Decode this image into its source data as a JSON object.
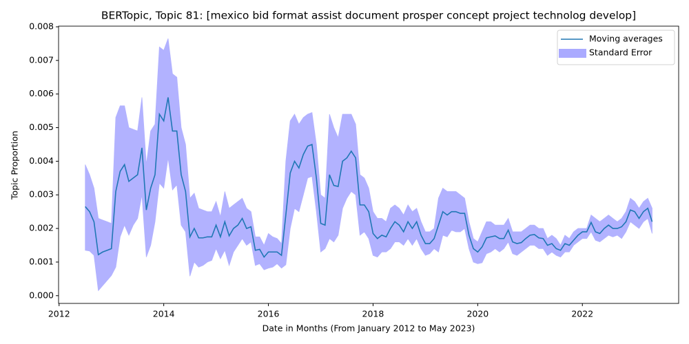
{
  "chart_data": {
    "type": "line",
    "title": "BERTopic, Topic 81: [mexico bid format assist document prosper concept project technolog develop]",
    "x_label": "Date in Months (From January 2012 to May 2023)",
    "y_label": "Topic Proportion",
    "x": [
      2012.5,
      2012.583,
      2012.667,
      2012.75,
      2012.833,
      2012.917,
      2013,
      2013.083,
      2013.167,
      2013.25,
      2013.333,
      2013.417,
      2013.5,
      2013.583,
      2013.667,
      2013.75,
      2013.833,
      2013.917,
      2014,
      2014.083,
      2014.167,
      2014.25,
      2014.333,
      2014.417,
      2014.5,
      2014.583,
      2014.667,
      2014.75,
      2014.833,
      2014.917,
      2015,
      2015.083,
      2015.167,
      2015.25,
      2015.333,
      2015.417,
      2015.5,
      2015.583,
      2015.667,
      2015.75,
      2015.833,
      2015.917,
      2016,
      2016.083,
      2016.167,
      2016.25,
      2016.333,
      2016.417,
      2016.5,
      2016.583,
      2016.667,
      2016.75,
      2016.833,
      2016.917,
      2017,
      2017.083,
      2017.167,
      2017.25,
      2017.333,
      2017.417,
      2017.5,
      2017.583,
      2017.667,
      2017.75,
      2017.833,
      2017.917,
      2018,
      2018.083,
      2018.167,
      2018.25,
      2018.333,
      2018.417,
      2018.5,
      2018.583,
      2018.667,
      2018.75,
      2018.833,
      2018.917,
      2019,
      2019.083,
      2019.167,
      2019.25,
      2019.333,
      2019.417,
      2019.5,
      2019.583,
      2019.667,
      2019.75,
      2019.833,
      2019.917,
      2020,
      2020.083,
      2020.167,
      2020.25,
      2020.333,
      2020.417,
      2020.5,
      2020.583,
      2020.667,
      2020.75,
      2020.833,
      2020.917,
      2021,
      2021.083,
      2021.167,
      2021.25,
      2021.333,
      2021.417,
      2021.5,
      2021.583,
      2021.667,
      2021.75,
      2021.833,
      2021.917,
      2022,
      2022.083,
      2022.167,
      2022.25,
      2022.333,
      2022.417,
      2022.5,
      2022.583,
      2022.667,
      2022.75,
      2022.833,
      2022.917,
      2023,
      2023.083,
      2023.167,
      2023.25,
      2023.333
    ],
    "series": [
      {
        "name": "Moving averages",
        "color": "#1f77b4",
        "values": [
          0.00265,
          0.0025,
          0.0022,
          0.00122,
          0.0013,
          0.00135,
          0.0014,
          0.0031,
          0.0037,
          0.0039,
          0.0034,
          0.0035,
          0.0036,
          0.0044,
          0.00255,
          0.0032,
          0.0036,
          0.0054,
          0.0052,
          0.0059,
          0.0049,
          0.0049,
          0.0036,
          0.0031,
          0.00175,
          0.002,
          0.00172,
          0.00172,
          0.00175,
          0.00175,
          0.0021,
          0.00175,
          0.0022,
          0.00178,
          0.002,
          0.0021,
          0.0023,
          0.002,
          0.00205,
          0.00135,
          0.00138,
          0.00115,
          0.0013,
          0.0013,
          0.0013,
          0.0012,
          0.0024,
          0.00365,
          0.004,
          0.0038,
          0.0042,
          0.00445,
          0.0045,
          0.0035,
          0.00215,
          0.0021,
          0.0036,
          0.00328,
          0.00325,
          0.004,
          0.0041,
          0.0043,
          0.0041,
          0.0027,
          0.0027,
          0.0025,
          0.00185,
          0.0017,
          0.0018,
          0.00175,
          0.002,
          0.0022,
          0.0021,
          0.0019,
          0.0022,
          0.002,
          0.0022,
          0.0018,
          0.00155,
          0.00155,
          0.0017,
          0.0021,
          0.0025,
          0.0024,
          0.0025,
          0.0025,
          0.00245,
          0.00245,
          0.0018,
          0.0014,
          0.0013,
          0.00145,
          0.00172,
          0.00175,
          0.00178,
          0.0017,
          0.0017,
          0.00195,
          0.0016,
          0.00155,
          0.00158,
          0.0017,
          0.0018,
          0.00182,
          0.00172,
          0.0017,
          0.0015,
          0.00155,
          0.0014,
          0.00135,
          0.00155,
          0.0015,
          0.00165,
          0.0018,
          0.0019,
          0.0019,
          0.00218,
          0.0019,
          0.00185,
          0.002,
          0.0021,
          0.002,
          0.002,
          0.00205,
          0.0022,
          0.00255,
          0.0025,
          0.0023,
          0.0025,
          0.0026,
          0.0022
        ]
      },
      {
        "name": "Standard Error",
        "color": "#aaaaff",
        "upper": [
          0.0039,
          0.0036,
          0.0032,
          0.0023,
          0.00225,
          0.0022,
          0.00215,
          0.0053,
          0.00565,
          0.00565,
          0.005,
          0.00495,
          0.0049,
          0.0059,
          0.0039,
          0.0049,
          0.0051,
          0.0074,
          0.0073,
          0.00765,
          0.0066,
          0.0065,
          0.005,
          0.0045,
          0.0029,
          0.00305,
          0.0026,
          0.00255,
          0.0025,
          0.0025,
          0.0028,
          0.00235,
          0.0031,
          0.0026,
          0.0027,
          0.0028,
          0.0029,
          0.0026,
          0.0025,
          0.00175,
          0.00175,
          0.0015,
          0.00185,
          0.00175,
          0.0017,
          0.00155,
          0.004,
          0.0052,
          0.0054,
          0.0051,
          0.0053,
          0.0054,
          0.00545,
          0.0045,
          0.003,
          0.0029,
          0.0054,
          0.005,
          0.0047,
          0.0054,
          0.0054,
          0.0054,
          0.0051,
          0.0036,
          0.0035,
          0.0032,
          0.0025,
          0.0023,
          0.0023,
          0.0022,
          0.0026,
          0.0027,
          0.0026,
          0.0024,
          0.0027,
          0.0025,
          0.0026,
          0.0022,
          0.0019,
          0.0019,
          0.002,
          0.0029,
          0.0032,
          0.0031,
          0.0031,
          0.0031,
          0.003,
          0.0029,
          0.0022,
          0.0017,
          0.0016,
          0.0019,
          0.0022,
          0.0022,
          0.0021,
          0.0021,
          0.0021,
          0.0023,
          0.0019,
          0.0019,
          0.0019,
          0.002,
          0.0021,
          0.0021,
          0.002,
          0.002,
          0.0017,
          0.0018,
          0.0017,
          0.0015,
          0.0018,
          0.0017,
          0.0019,
          0.002,
          0.002,
          0.002,
          0.0024,
          0.0023,
          0.0022,
          0.0023,
          0.0024,
          0.0023,
          0.0022,
          0.0023,
          0.0025,
          0.0029,
          0.0028,
          0.0026,
          0.0028,
          0.0029,
          0.0026
        ],
        "lower": [
          0.00135,
          0.00133,
          0.0012,
          0.00015,
          0.0003,
          0.00045,
          0.0006,
          0.00085,
          0.00175,
          0.0021,
          0.0018,
          0.0021,
          0.0023,
          0.003,
          0.00115,
          0.0015,
          0.0022,
          0.00335,
          0.0032,
          0.0041,
          0.00315,
          0.0033,
          0.0021,
          0.0019,
          0.00058,
          0.001,
          0.00085,
          0.0009,
          0.001,
          0.00105,
          0.0014,
          0.0011,
          0.00135,
          0.0009,
          0.0013,
          0.0015,
          0.0017,
          0.0015,
          0.0016,
          0.0009,
          0.00095,
          0.00077,
          0.00082,
          0.00085,
          0.00095,
          0.00082,
          0.00092,
          0.002,
          0.0026,
          0.0025,
          0.003,
          0.0035,
          0.00355,
          0.0025,
          0.0013,
          0.0014,
          0.0017,
          0.0016,
          0.0018,
          0.0026,
          0.0029,
          0.0031,
          0.003,
          0.0018,
          0.0019,
          0.0017,
          0.0012,
          0.00115,
          0.0013,
          0.0013,
          0.0014,
          0.0016,
          0.0016,
          0.0015,
          0.0017,
          0.0015,
          0.0017,
          0.0014,
          0.0012,
          0.00125,
          0.0014,
          0.0013,
          0.0018,
          0.00175,
          0.00195,
          0.0019,
          0.0019,
          0.002,
          0.0014,
          0.001,
          0.00095,
          0.00098,
          0.00125,
          0.0013,
          0.0014,
          0.0013,
          0.0014,
          0.0016,
          0.00125,
          0.0012,
          0.0013,
          0.0014,
          0.0015,
          0.0015,
          0.0014,
          0.0014,
          0.0012,
          0.0013,
          0.0012,
          0.00115,
          0.0013,
          0.0013,
          0.0015,
          0.0016,
          0.0017,
          0.0017,
          0.0019,
          0.00165,
          0.0016,
          0.0017,
          0.0018,
          0.00175,
          0.0018,
          0.0017,
          0.0019,
          0.0022,
          0.0021,
          0.002,
          0.0022,
          0.0023,
          0.00185
        ]
      }
    ],
    "xlim": [
      2011.99,
      2023.84
    ],
    "xticks": [
      2012,
      2014,
      2016,
      2018,
      2020,
      2022
    ],
    "ylim": [
      -0.00023,
      0.00802
    ],
    "yticks": [
      {
        "value": 0,
        "label": "0.000"
      },
      {
        "value": 0.001,
        "label": "0.001"
      },
      {
        "value": 0.002,
        "label": "0.002"
      },
      {
        "value": 0.003,
        "label": "0.003"
      },
      {
        "value": 0.004,
        "label": "0.004"
      },
      {
        "value": 0.005,
        "label": "0.005"
      },
      {
        "value": 0.006,
        "label": "0.006"
      },
      {
        "value": 0.007,
        "label": "0.007"
      },
      {
        "value": 0.008,
        "label": "0.008"
      }
    ],
    "legend": "upper right"
  }
}
